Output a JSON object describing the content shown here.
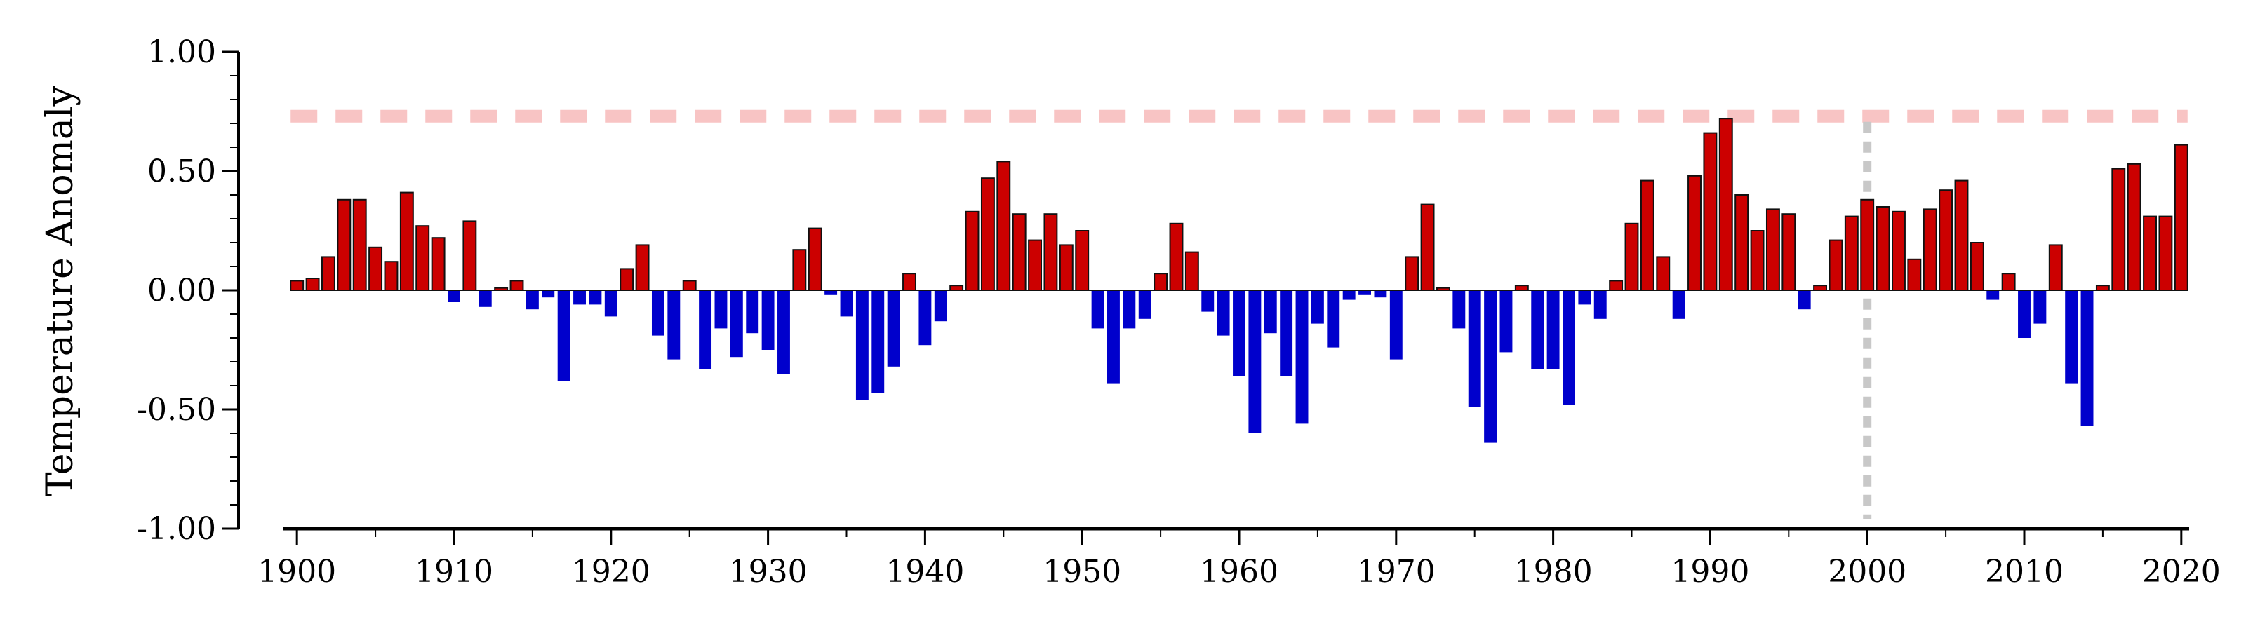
{
  "chart_data": {
    "type": "bar",
    "title": "",
    "xlabel": "",
    "ylabel": "Temperature Anomaly",
    "xlim": [
      1899.5,
      2020.5
    ],
    "ylim": [
      -1.0,
      1.0
    ],
    "x_ticks": [
      "1900",
      "1910",
      "1920",
      "1930",
      "1940",
      "1950",
      "1960",
      "1970",
      "1980",
      "1990",
      "2000",
      "2010",
      "2020"
    ],
    "y_ticks": [
      "1.00",
      "0.50",
      "0.00",
      "-0.50",
      "-1.00"
    ],
    "grid": false,
    "legend": "none",
    "colors": {
      "positive": "#cc0000",
      "negative": "#0000cc",
      "reference_line": "#f8c4c4",
      "marker_line": "#c8c8c8"
    },
    "reference_line": {
      "y": 0.73
    },
    "marker_line": {
      "x": 2000
    },
    "x": [
      1900,
      1901,
      1902,
      1903,
      1904,
      1905,
      1906,
      1907,
      1908,
      1909,
      1910,
      1911,
      1912,
      1913,
      1914,
      1915,
      1916,
      1917,
      1918,
      1919,
      1920,
      1921,
      1922,
      1923,
      1924,
      1925,
      1926,
      1927,
      1928,
      1929,
      1930,
      1931,
      1932,
      1933,
      1934,
      1935,
      1936,
      1937,
      1938,
      1939,
      1940,
      1941,
      1942,
      1943,
      1944,
      1945,
      1946,
      1947,
      1948,
      1949,
      1950,
      1951,
      1952,
      1953,
      1954,
      1955,
      1956,
      1957,
      1958,
      1959,
      1960,
      1961,
      1962,
      1963,
      1964,
      1965,
      1966,
      1967,
      1968,
      1969,
      1970,
      1971,
      1972,
      1973,
      1974,
      1975,
      1976,
      1977,
      1978,
      1979,
      1980,
      1981,
      1982,
      1983,
      1984,
      1985,
      1986,
      1987,
      1988,
      1989,
      1990,
      1991,
      1992,
      1993,
      1994,
      1995,
      1996,
      1997,
      1998,
      1999,
      2000,
      2001,
      2002,
      2003,
      2004,
      2005,
      2006,
      2007,
      2008,
      2009,
      2010,
      2011,
      2012,
      2013,
      2014,
      2015,
      2016,
      2017,
      2018,
      2019,
      2020
    ],
    "values": [
      0.04,
      0.05,
      0.14,
      0.38,
      0.38,
      0.18,
      0.12,
      0.41,
      0.27,
      0.22,
      -0.05,
      0.29,
      -0.07,
      0.01,
      0.04,
      -0.08,
      -0.03,
      -0.38,
      -0.06,
      -0.06,
      -0.11,
      0.09,
      0.19,
      -0.19,
      -0.29,
      0.04,
      -0.33,
      -0.16,
      -0.28,
      -0.18,
      -0.25,
      -0.35,
      0.17,
      0.26,
      -0.02,
      -0.11,
      -0.46,
      -0.43,
      -0.32,
      0.07,
      -0.23,
      -0.13,
      0.02,
      0.33,
      0.47,
      0.54,
      0.32,
      0.21,
      0.32,
      0.19,
      0.25,
      -0.16,
      -0.39,
      -0.16,
      -0.12,
      0.07,
      0.28,
      0.16,
      -0.09,
      -0.19,
      -0.36,
      -0.6,
      -0.18,
      -0.36,
      -0.56,
      -0.14,
      -0.24,
      -0.04,
      -0.02,
      -0.03,
      -0.29,
      0.14,
      0.36,
      0.01,
      -0.16,
      -0.49,
      -0.64,
      -0.26,
      0.02,
      -0.33,
      -0.33,
      -0.48,
      -0.06,
      -0.12,
      0.04,
      0.28,
      0.46,
      0.14,
      -0.12,
      0.48,
      0.66,
      0.72,
      0.4,
      0.25,
      0.34,
      0.32,
      -0.08,
      0.02,
      0.21,
      0.31,
      0.38,
      0.35,
      0.33,
      0.13,
      0.34,
      0.42,
      0.46,
      0.2,
      -0.04,
      0.07,
      -0.2,
      -0.14,
      0.19,
      -0.39,
      -0.57,
      0.02,
      0.51,
      0.53,
      0.31,
      0.31,
      0.61
    ]
  }
}
